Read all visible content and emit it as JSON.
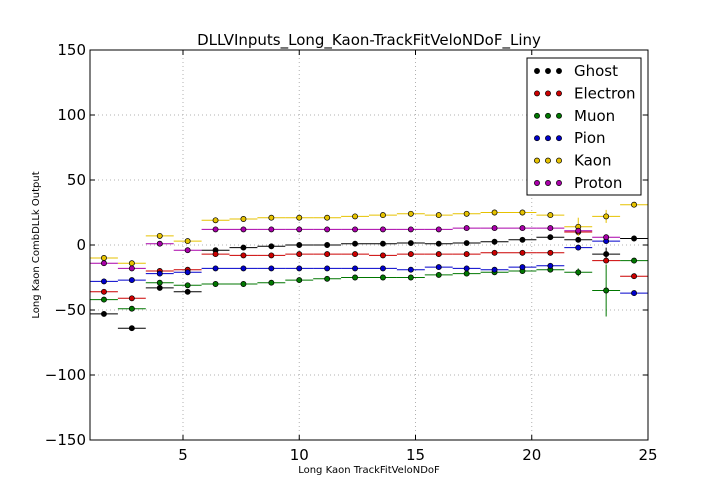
{
  "chart_data": {
    "type": "scatter",
    "title": "DLLVInputs_Long_Kaon-TrackFitVeloNDoF_Liny",
    "xlabel": "Long Kaon TrackFitVeloNDoF",
    "ylabel": "Long Kaon CombDLLk Output",
    "xlim": [
      1.0,
      25.0
    ],
    "ylim": [
      -150,
      150
    ],
    "xticks": [
      5,
      10,
      15,
      20,
      25
    ],
    "yticks": [
      -150,
      -100,
      -50,
      0,
      50,
      100,
      150
    ],
    "grid": true,
    "legend_position": "top-right",
    "bin_halfwidth": 0.6,
    "series": [
      {
        "name": "Ghost",
        "color": "#000000",
        "x": [
          1.6,
          2.8,
          4.0,
          5.2,
          6.4,
          7.6,
          8.8,
          10.0,
          11.2,
          12.4,
          13.6,
          14.8,
          16.0,
          17.2,
          18.4,
          19.6,
          20.8,
          22.0,
          23.2,
          24.4
        ],
        "y": [
          -53,
          -64,
          -33,
          -36,
          -4,
          -2,
          -1,
          0,
          0,
          1,
          1,
          1.5,
          1,
          1.5,
          2.5,
          4,
          6,
          4,
          -7,
          5
        ],
        "err": [
          0,
          0,
          0,
          0,
          0,
          0,
          0,
          0,
          0,
          0,
          0,
          0,
          0,
          0,
          0,
          0,
          0,
          0,
          5,
          0
        ]
      },
      {
        "name": "Electron",
        "color": "#cc0000",
        "x": [
          1.6,
          2.8,
          4.0,
          5.2,
          6.4,
          7.6,
          8.8,
          10.0,
          11.2,
          12.4,
          13.6,
          14.8,
          16.0,
          17.2,
          18.4,
          19.6,
          20.8,
          22.0,
          23.2,
          24.4
        ],
        "y": [
          -36,
          -41,
          -20,
          -19,
          -7,
          -8,
          -8,
          -7,
          -7,
          -7,
          -8,
          -7,
          -7,
          -7,
          -6,
          -6,
          -6,
          10,
          -12,
          -24
        ],
        "err": [
          0,
          0,
          0,
          0,
          0,
          0,
          0,
          0,
          0,
          0,
          0,
          0,
          0,
          0,
          0,
          0,
          0,
          0,
          0,
          0
        ]
      },
      {
        "name": "Muon",
        "color": "#007700",
        "x": [
          1.6,
          2.8,
          4.0,
          5.2,
          6.4,
          7.6,
          8.8,
          10.0,
          11.2,
          12.4,
          13.6,
          14.8,
          16.0,
          17.2,
          18.4,
          19.6,
          20.8,
          22.0,
          23.2,
          24.4
        ],
        "y": [
          -42,
          -49,
          -29,
          -31,
          -30,
          -30,
          -29,
          -27,
          -26,
          -25,
          -25,
          -25,
          -23,
          -22,
          -21,
          -20,
          -19,
          -21,
          -35,
          -12
        ],
        "err": [
          0,
          0,
          0,
          0,
          0,
          0,
          0,
          0,
          0,
          0,
          0,
          0,
          0,
          0,
          0,
          0,
          0,
          3,
          20,
          0
        ]
      },
      {
        "name": "Pion",
        "color": "#0000cc",
        "x": [
          1.6,
          2.8,
          4.0,
          5.2,
          6.4,
          7.6,
          8.8,
          10.0,
          11.2,
          12.4,
          13.6,
          14.8,
          16.0,
          17.2,
          18.4,
          19.6,
          20.8,
          22.0,
          23.2,
          24.4
        ],
        "y": [
          -28,
          -27,
          -22,
          -21,
          -18,
          -18,
          -18,
          -18,
          -18,
          -18,
          -18,
          -19,
          -17,
          -18,
          -19,
          -17,
          -16,
          -2,
          3,
          -37
        ],
        "err": [
          0,
          0,
          0,
          0,
          0,
          0,
          0,
          0,
          0,
          0,
          0,
          0,
          0,
          0,
          0,
          0,
          0,
          0,
          0,
          0
        ]
      },
      {
        "name": "Kaon",
        "color": "#e6c200",
        "x": [
          1.6,
          2.8,
          4.0,
          5.2,
          6.4,
          7.6,
          8.8,
          10.0,
          11.2,
          12.4,
          13.6,
          14.8,
          16.0,
          17.2,
          18.4,
          19.6,
          20.8,
          22.0,
          23.2,
          24.4
        ],
        "y": [
          -10,
          -14,
          7,
          3,
          19,
          20,
          21,
          21,
          21,
          22,
          23,
          24,
          23,
          24,
          25,
          25,
          23,
          14,
          22,
          31
        ],
        "err": [
          0,
          0,
          0,
          0,
          0,
          0,
          0,
          0,
          0,
          0,
          0,
          0,
          0,
          0,
          0,
          0,
          0,
          7,
          5,
          0
        ]
      },
      {
        "name": "Proton",
        "color": "#aa00aa",
        "x": [
          1.6,
          2.8,
          4.0,
          5.2,
          6.4,
          7.6,
          8.8,
          10.0,
          11.2,
          12.4,
          13.6,
          14.8,
          16.0,
          17.2,
          18.4,
          19.6,
          20.8,
          22.0,
          23.2,
          24.4
        ],
        "y": [
          -14,
          -18,
          1,
          -4,
          12,
          12,
          12,
          12,
          12,
          12,
          12,
          12,
          12,
          13,
          13,
          13,
          13,
          11,
          6,
          null
        ],
        "err": [
          0,
          0,
          0,
          0,
          0,
          0,
          0,
          0,
          0,
          0,
          0,
          0,
          0,
          0,
          0,
          0,
          0,
          0,
          0,
          0
        ]
      }
    ]
  }
}
